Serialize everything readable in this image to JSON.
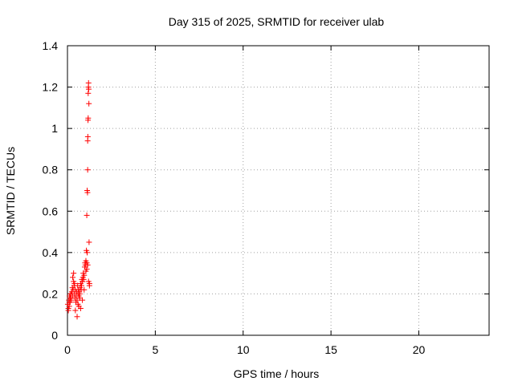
{
  "chart_data": {
    "type": "scatter",
    "title": "Day 315 of 2025, SRMTID for receiver ulab",
    "xlabel": "GPS time / hours",
    "ylabel": "SRMTID / TECUs",
    "xlim": [
      0,
      24
    ],
    "ylim": [
      0,
      1.4
    ],
    "xticks": [
      0,
      5,
      10,
      15,
      20
    ],
    "yticks": [
      0,
      0.2,
      0.4,
      0.6,
      0.8,
      1,
      1.2,
      1.4
    ],
    "grid": true,
    "marker": "plus",
    "color": "#ff0000",
    "series": [
      {
        "name": "SRMTID",
        "x": [
          0.02,
          0.05,
          0.08,
          0.1,
          0.12,
          0.15,
          0.18,
          0.2,
          0.22,
          0.25,
          0.28,
          0.3,
          0.32,
          0.35,
          0.38,
          0.4,
          0.42,
          0.45,
          0.48,
          0.5,
          0.52,
          0.55,
          0.58,
          0.6,
          0.62,
          0.65,
          0.68,
          0.7,
          0.72,
          0.75,
          0.78,
          0.8,
          0.82,
          0.85,
          0.88,
          0.9,
          0.92,
          0.95,
          0.98,
          1.0,
          1.02,
          1.05,
          1.08,
          1.1,
          1.12,
          1.15,
          1.15,
          1.17,
          1.18,
          1.19,
          1.2,
          1.21,
          1.22,
          1.23,
          1.25,
          1.1,
          1.12,
          1.14,
          1.16,
          1.18,
          0.05,
          0.1,
          0.15,
          0.2,
          0.3,
          0.35,
          0.4,
          0.45,
          0.55,
          0.6,
          0.65,
          0.7,
          0.75,
          0.85,
          0.95,
          1.05,
          1.1,
          1.15,
          1.2,
          1.25
        ],
        "y": [
          0.15,
          0.13,
          0.17,
          0.14,
          0.19,
          0.16,
          0.2,
          0.18,
          0.17,
          0.21,
          0.23,
          0.19,
          0.22,
          0.26,
          0.24,
          0.2,
          0.18,
          0.22,
          0.16,
          0.19,
          0.21,
          0.17,
          0.24,
          0.2,
          0.22,
          0.19,
          0.21,
          0.2,
          0.23,
          0.25,
          0.22,
          0.24,
          0.27,
          0.26,
          0.28,
          0.3,
          0.27,
          0.29,
          0.33,
          0.35,
          0.34,
          0.36,
          0.41,
          0.58,
          0.7,
          0.8,
          0.94,
          1.04,
          1.17,
          1.2,
          1.22,
          1.19,
          1.12,
          0.45,
          0.25,
          0.32,
          0.4,
          0.69,
          0.96,
          1.05,
          0.12,
          0.16,
          0.18,
          0.2,
          0.28,
          0.3,
          0.25,
          0.12,
          0.09,
          0.15,
          0.14,
          0.18,
          0.13,
          0.17,
          0.22,
          0.31,
          0.35,
          0.34,
          0.26,
          0.24
        ]
      }
    ]
  }
}
